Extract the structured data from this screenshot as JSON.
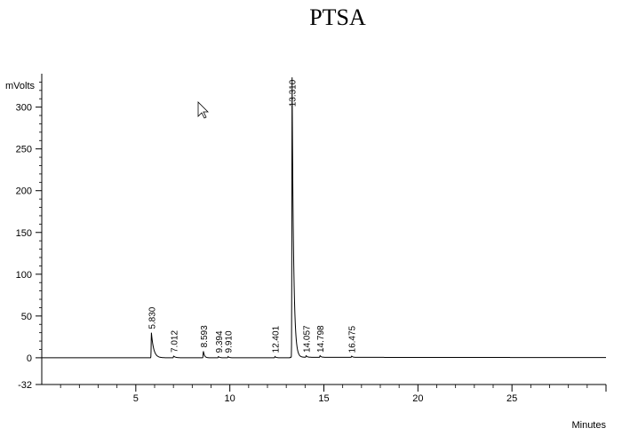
{
  "chart_data": {
    "type": "line",
    "title": "PTSA",
    "xlabel": "Minutes",
    "ylabel": "mVolts",
    "xlim": [
      0,
      30
    ],
    "ylim": [
      -32,
      340
    ],
    "x_ticks": [
      5,
      10,
      15,
      20,
      25
    ],
    "y_ticks": [
      -32,
      0,
      50,
      100,
      150,
      200,
      250,
      300
    ],
    "grid": false,
    "peaks": [
      {
        "label": "5.830",
        "x": 5.83,
        "height": 30,
        "tail": 0.12
      },
      {
        "label": "7.012",
        "x": 7.012,
        "height": 2,
        "tail": 0.1
      },
      {
        "label": "8.593",
        "x": 8.593,
        "height": 8,
        "tail": 0.06
      },
      {
        "label": "9.394",
        "x": 9.394,
        "height": 1.5,
        "tail": 0.06
      },
      {
        "label": "9.910",
        "x": 9.91,
        "height": 1.5,
        "tail": 0.06
      },
      {
        "label": "12.401",
        "x": 12.401,
        "height": 1.5,
        "tail": 0.06
      },
      {
        "label": "13.310",
        "x": 13.31,
        "height": 335,
        "tail": 0.08
      },
      {
        "label": "14.057",
        "x": 14.057,
        "height": 2,
        "tail": 0.06
      },
      {
        "label": "14.798",
        "x": 14.798,
        "height": 2,
        "tail": 0.06
      },
      {
        "label": "16.475",
        "x": 16.475,
        "height": 1.5,
        "tail": 0.06
      }
    ],
    "colors": {
      "trace": "#000000",
      "axis": "#000000"
    }
  }
}
